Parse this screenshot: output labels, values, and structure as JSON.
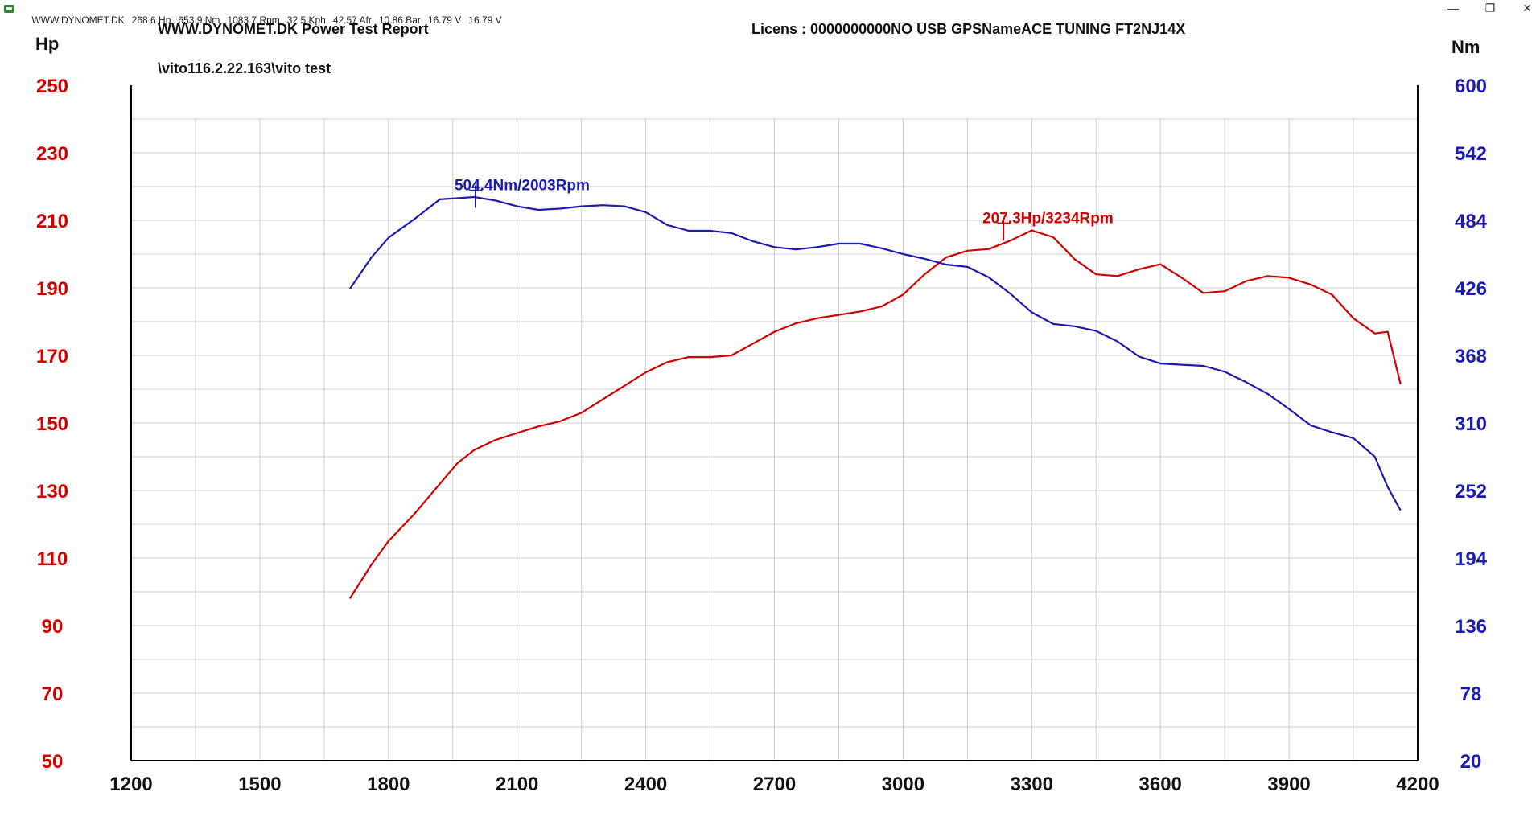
{
  "window": {
    "status_items": [
      "WWW.DYNOMET.DK",
      "268.6 Hp",
      "653.9 Nm",
      "1083.7 Rpm",
      "32.5 Kph",
      "42.57 Afr",
      "10.86 Bar",
      "16.79 V",
      "16.79 V"
    ],
    "min_icon": "minimize-icon",
    "restore_icon": "restore-icon",
    "close_icon": "close-icon"
  },
  "header": {
    "title": "WWW.DYNOMET.DK  Power Test Report",
    "license": "Licens :  0000000000NO USB GPSNameACE TUNING  FT2NJ14X",
    "file_path": "\\vito116.2.22.163\\vito test"
  },
  "colors": {
    "power": "#d00000",
    "torque": "#1b1bb0",
    "grid": "#cfcfcf",
    "axis": "#000000"
  },
  "chart_data": {
    "type": "line",
    "title": "WWW.DYNOMET.DK  Power Test Report",
    "xlim": [
      1200,
      4200
    ],
    "x_ticks": [
      "1200",
      "1500",
      "1800",
      "2100",
      "2400",
      "2700",
      "3000",
      "3300",
      "3600",
      "3900",
      "4200"
    ],
    "y_left": {
      "label": "Hp",
      "lim": [
        50,
        250
      ],
      "ticks": [
        "250",
        "230",
        "210",
        "190",
        "170",
        "150",
        "130",
        "110",
        "90",
        "70",
        "50"
      ]
    },
    "y_right": {
      "label": "Nm",
      "lim": [
        20,
        600
      ],
      "ticks": [
        "600",
        "542",
        "484",
        "426",
        "368",
        "310",
        "252",
        "194",
        "136",
        "78",
        "20"
      ]
    },
    "grid": true,
    "series": [
      {
        "name": "Hp",
        "axis": "left",
        "color": "#d00000",
        "x": [
          1710,
          1760,
          1800,
          1860,
          1920,
          1960,
          2000,
          2050,
          2100,
          2150,
          2200,
          2250,
          2300,
          2350,
          2400,
          2450,
          2500,
          2550,
          2600,
          2650,
          2700,
          2750,
          2800,
          2850,
          2900,
          2950,
          3000,
          3050,
          3100,
          3150,
          3200,
          3250,
          3300,
          3350,
          3400,
          3450,
          3500,
          3550,
          3600,
          3650,
          3700,
          3750,
          3800,
          3850,
          3900,
          3950,
          4000,
          4050,
          4100,
          4130,
          4160
        ],
        "y": [
          98,
          108,
          115,
          123,
          132,
          138,
          142,
          145,
          147,
          149,
          150.5,
          153,
          157,
          161,
          165,
          168,
          169.5,
          169.5,
          170,
          173.5,
          177,
          179.5,
          181,
          182,
          183,
          184.5,
          188,
          194,
          199,
          201,
          201.5,
          204,
          207,
          205,
          198.5,
          194,
          193.5,
          195.5,
          197,
          193,
          188.5,
          189,
          192,
          193.5,
          193,
          191,
          188,
          181,
          176.5,
          177,
          161.5
        ]
      },
      {
        "name": "Nm",
        "axis": "right",
        "color": "#1b1bb0",
        "x": [
          1710,
          1760,
          1800,
          1860,
          1920,
          1960,
          2000,
          2050,
          2100,
          2150,
          2200,
          2250,
          2300,
          2350,
          2400,
          2450,
          2500,
          2550,
          2600,
          2650,
          2700,
          2750,
          2800,
          2850,
          2900,
          2950,
          3000,
          3050,
          3100,
          3150,
          3200,
          3250,
          3300,
          3350,
          3400,
          3450,
          3500,
          3550,
          3600,
          3650,
          3700,
          3750,
          3800,
          3850,
          3900,
          3950,
          4000,
          4050,
          4100,
          4130,
          4160
        ],
        "y": [
          425,
          452,
          469,
          485,
          502,
          503,
          504,
          501,
          496,
          493,
          494,
          496,
          497,
          496,
          491,
          480,
          475,
          475,
          473,
          466,
          461,
          459,
          461,
          464,
          464,
          460,
          455,
          451,
          446,
          444,
          435,
          421,
          405,
          395,
          393,
          389,
          380,
          367,
          361,
          360,
          359,
          354,
          345,
          335,
          322,
          308,
          302,
          297,
          281,
          255,
          235
        ]
      }
    ],
    "annotations": [
      {
        "text": "504.4Nm/2003Rpm",
        "series": "Nm",
        "x": 2003,
        "y": 504.4
      },
      {
        "text": "207.3Hp/3234Rpm",
        "series": "Hp",
        "x": 3234,
        "y": 207.3
      }
    ]
  }
}
